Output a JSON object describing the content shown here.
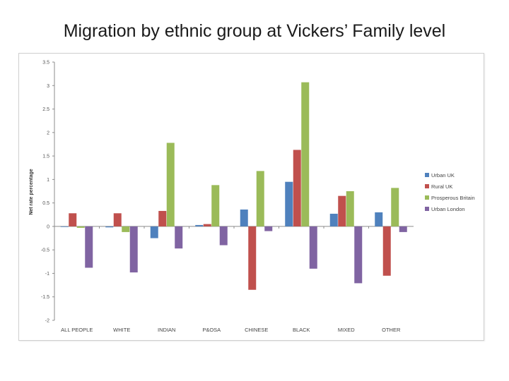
{
  "slide": {
    "title": "Migration by ethnic group at Vickers’ Family level"
  },
  "chart_data": {
    "type": "bar",
    "title": "",
    "xlabel": "",
    "ylabel": "Net rate percentage",
    "ylim": [
      -2,
      3.5
    ],
    "yticks": [
      "3.5",
      "3",
      "2.5",
      "2",
      "1.5",
      "1",
      "0.5",
      "0",
      "-0.5",
      "-1",
      "-1.5",
      "-2"
    ],
    "grid": false,
    "legend_position": "right",
    "categories": [
      "ALL PEOPLE",
      "WHITE",
      "INDIAN",
      "P&OSA",
      "CHINESE",
      "BLACK",
      "MIXED",
      "OTHER"
    ],
    "series": [
      {
        "name": "Urban UK",
        "color": "#4f81bd",
        "values": [
          -0.01,
          -0.02,
          -0.25,
          0.03,
          0.36,
          0.95,
          0.27,
          0.3
        ]
      },
      {
        "name": "Rural UK",
        "color": "#c0504d",
        "values": [
          0.28,
          0.28,
          0.33,
          0.05,
          -1.35,
          1.63,
          0.65,
          -1.05
        ]
      },
      {
        "name": "Prosperous Britain",
        "color": "#9bbb59",
        "values": [
          -0.03,
          -0.12,
          1.78,
          0.88,
          1.18,
          3.07,
          0.75,
          0.82
        ]
      },
      {
        "name": "Urban London",
        "color": "#8064a2",
        "values": [
          -0.88,
          -0.98,
          -0.47,
          -0.4,
          -0.1,
          -0.9,
          -1.21,
          -0.12
        ]
      }
    ]
  }
}
